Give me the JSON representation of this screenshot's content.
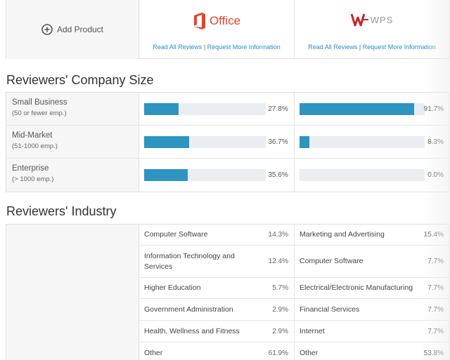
{
  "header": {
    "add_product_label": "Add Product",
    "products": [
      {
        "name": "Office",
        "link_reviews": "Read All Reviews",
        "separator": "|",
        "link_info": "Request More Information",
        "brand_color": "#e8432a"
      },
      {
        "name": "WPS",
        "link_reviews": "Read All Reviews",
        "separator": "|",
        "link_info": "Request More Information",
        "brand_color": "#c0262d"
      }
    ]
  },
  "company_size": {
    "title": "Reviewers' Company Size",
    "rows": [
      {
        "label": "Small Business",
        "sub": "(50 or fewer emp.)",
        "values": [
          27.8,
          91.7
        ],
        "display": [
          "27.8%",
          "91.7%"
        ]
      },
      {
        "label": "Mid-Market",
        "sub": "(51-1000 emp.)",
        "values": [
          36.7,
          8.3
        ],
        "display": [
          "36.7%",
          "8.3%"
        ]
      },
      {
        "label": "Enterprise",
        "sub": "(> 1000 emp.)",
        "values": [
          35.6,
          0.0
        ],
        "display": [
          "35.6%",
          "0.0%"
        ]
      }
    ],
    "bar_color": "#2e95c0"
  },
  "industry": {
    "title": "Reviewers' Industry",
    "columns": [
      [
        {
          "name": "Computer Software",
          "value": "14.3%"
        },
        {
          "name": "Information Technology and Services",
          "value": "12.4%"
        },
        {
          "name": "Higher Education",
          "value": "5.7%"
        },
        {
          "name": "Government Administration",
          "value": "2.9%"
        },
        {
          "name": "Health, Wellness and Fitness",
          "value": "2.9%"
        },
        {
          "name": "Other",
          "value": "61.9%"
        }
      ],
      [
        {
          "name": "Marketing and Advertising",
          "value": "15.4%"
        },
        {
          "name": "Computer Software",
          "value": "7.7%"
        },
        {
          "name": "Electrical/Electronic Manufacturing",
          "value": "7.7%"
        },
        {
          "name": "Financial Services",
          "value": "7.7%"
        },
        {
          "name": "Internet",
          "value": "7.7%"
        },
        {
          "name": "Other",
          "value": "53.8%"
        }
      ]
    ]
  }
}
